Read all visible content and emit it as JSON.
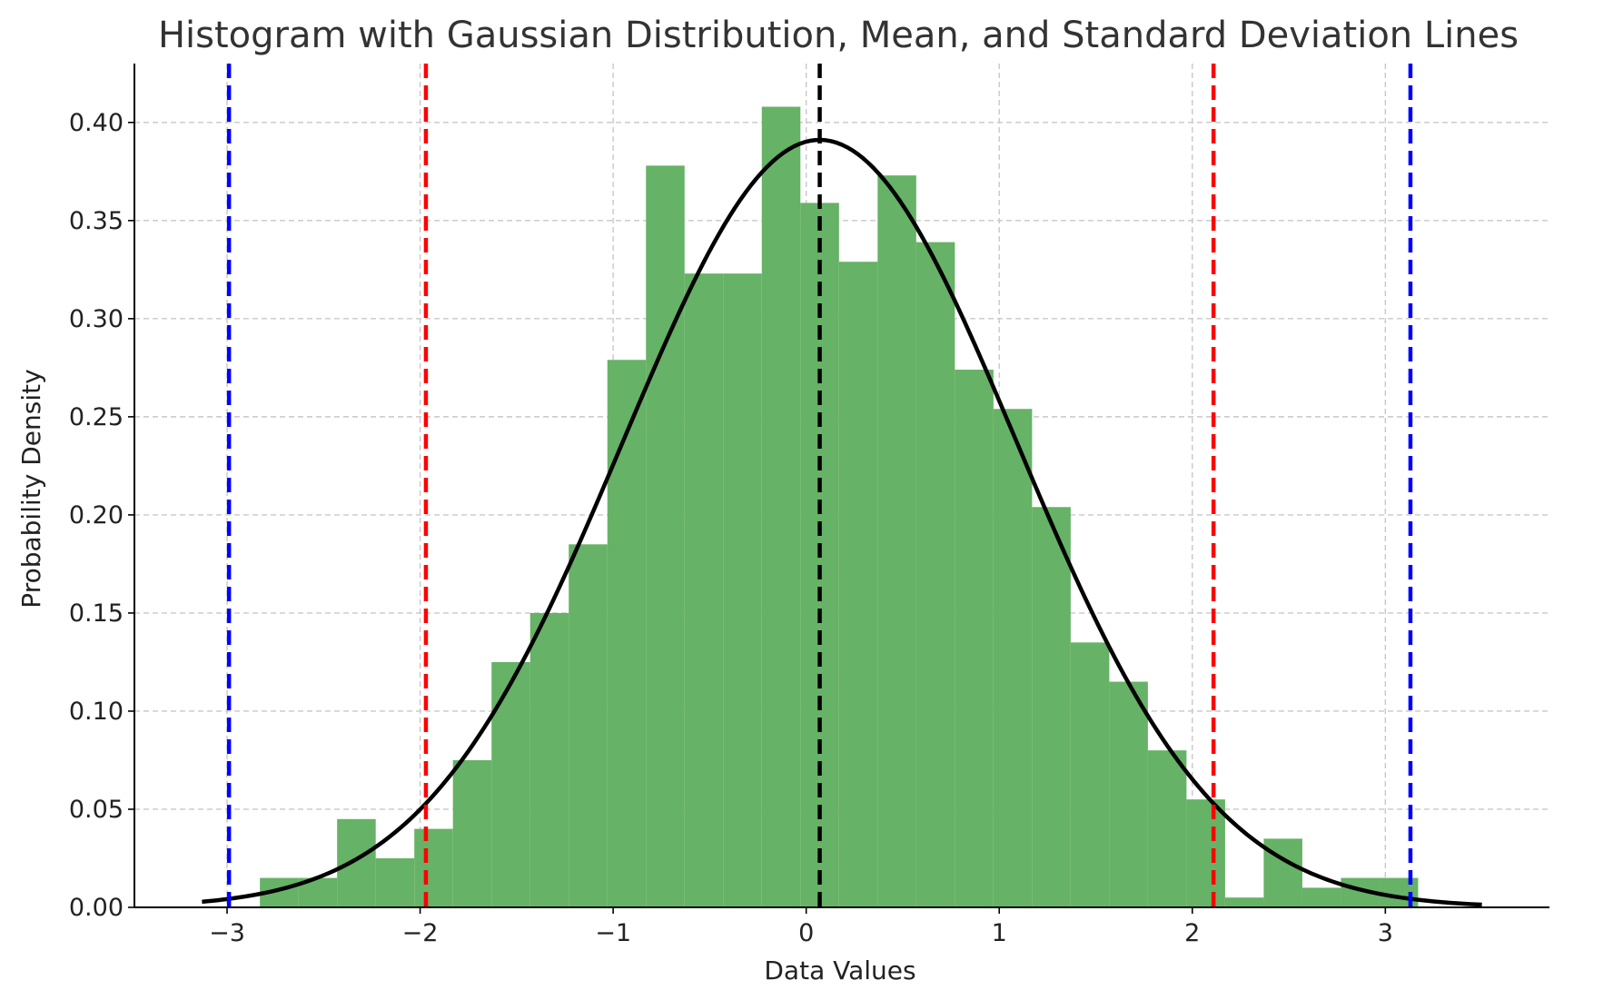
{
  "chart_data": {
    "type": "bar",
    "title": "Histogram with Gaussian Distribution, Mean, and Standard Deviation Lines",
    "xlabel": "Data Values",
    "ylabel": "Probability Density",
    "xlim": [
      -3.48,
      3.85
    ],
    "ylim": [
      0.0,
      0.43
    ],
    "xticks": [
      -3,
      -2,
      -1,
      0,
      1,
      2,
      3
    ],
    "xtick_labels": [
      "−3",
      "−2",
      "−1",
      "0",
      "1",
      "2",
      "3"
    ],
    "yticks": [
      0.0,
      0.05,
      0.1,
      0.15,
      0.2,
      0.25,
      0.3,
      0.35,
      0.4
    ],
    "ytick_labels": [
      "0.00",
      "0.05",
      "0.10",
      "0.15",
      "0.20",
      "0.25",
      "0.30",
      "0.35",
      "0.40"
    ],
    "grid": true,
    "histogram": {
      "color": "#66b266",
      "bin_edges": [
        -2.83,
        -2.63,
        -2.43,
        -2.23,
        -2.03,
        -1.83,
        -1.63,
        -1.43,
        -1.23,
        -1.03,
        -0.83,
        -0.63,
        -0.43,
        -0.23,
        -0.03,
        0.17,
        0.37,
        0.57,
        0.77,
        0.97,
        1.17,
        1.37,
        1.57,
        1.77,
        1.97,
        2.17,
        2.37,
        2.57,
        2.77,
        2.97,
        3.17
      ],
      "values": [
        0.015,
        0.015,
        0.045,
        0.025,
        0.04,
        0.075,
        0.125,
        0.15,
        0.185,
        0.279,
        0.378,
        0.323,
        0.323,
        0.408,
        0.359,
        0.329,
        0.373,
        0.339,
        0.274,
        0.254,
        0.204,
        0.135,
        0.115,
        0.08,
        0.055,
        0.005,
        0.035,
        0.01,
        0.015,
        0.015
      ]
    },
    "gaussian_curve": {
      "mean": 0.07,
      "std": 1.02,
      "x_range": [
        -3.13,
        3.5
      ],
      "color": "#000000"
    },
    "vertical_lines": [
      {
        "x": 0.07,
        "color": "#000000",
        "style": "dashed"
      },
      {
        "x": -1.97,
        "color": "#ff0000",
        "style": "dashed"
      },
      {
        "x": 2.11,
        "color": "#ff0000",
        "style": "dashed"
      },
      {
        "x": -2.99,
        "color": "#0000ff",
        "style": "dashed"
      },
      {
        "x": 3.13,
        "color": "#0000ff",
        "style": "dashed"
      }
    ]
  }
}
